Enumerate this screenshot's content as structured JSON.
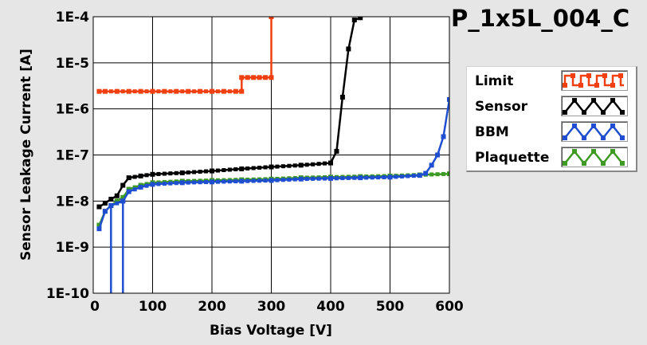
{
  "chart_data": {
    "type": "line",
    "title": "P_1x5L_004_C",
    "xlabel": "Bias Voltage [V]",
    "ylabel": "Sensor Leakage Current [A]",
    "xlim": [
      0,
      600
    ],
    "ylim": [
      1e-10,
      0.0001
    ],
    "yscale": "log",
    "grid": true,
    "legend_position": "right",
    "x_ticks": [
      "0",
      "100",
      "200",
      "300",
      "400",
      "500",
      "600"
    ],
    "y_ticks": [
      "1E-10",
      "1E-9",
      "1E-8",
      "1E-7",
      "1E-6",
      "1E-5",
      "1E-4"
    ],
    "series": [
      {
        "name": "Limit",
        "color": "#f04010",
        "points": [
          [
            10,
            2.4e-06
          ],
          [
            20,
            2.4e-06
          ],
          [
            40,
            2.4e-06
          ],
          [
            60,
            2.4e-06
          ],
          [
            80,
            2.4e-06
          ],
          [
            100,
            2.4e-06
          ],
          [
            120,
            2.4e-06
          ],
          [
            140,
            2.4e-06
          ],
          [
            160,
            2.4e-06
          ],
          [
            180,
            2.4e-06
          ],
          [
            200,
            2.4e-06
          ],
          [
            220,
            2.4e-06
          ],
          [
            240,
            2.4e-06
          ],
          [
            250,
            2.4e-06
          ],
          [
            250,
            4.8e-06
          ],
          [
            260,
            4.8e-06
          ],
          [
            270,
            4.8e-06
          ],
          [
            280,
            4.8e-06
          ],
          [
            290,
            4.8e-06
          ],
          [
            300,
            4.8e-06
          ],
          [
            300,
            0.0001
          ]
        ]
      },
      {
        "name": "Sensor",
        "color": "#000000",
        "points": [
          [
            10,
            7.5e-09
          ],
          [
            20,
            9e-09
          ],
          [
            30,
            1.1e-08
          ],
          [
            40,
            1.3e-08
          ],
          [
            50,
            2.2e-08
          ],
          [
            60,
            3.2e-08
          ],
          [
            80,
            3.5e-08
          ],
          [
            100,
            3.8e-08
          ],
          [
            150,
            4.1e-08
          ],
          [
            200,
            4.5e-08
          ],
          [
            250,
            5e-08
          ],
          [
            300,
            5.5e-08
          ],
          [
            350,
            6e-08
          ],
          [
            400,
            6.7e-08
          ],
          [
            410,
            1.2e-07
          ],
          [
            420,
            1.8e-06
          ],
          [
            430,
            2e-05
          ],
          [
            440,
            8.5e-05
          ],
          [
            450,
            9.5e-05
          ]
        ]
      },
      {
        "name": "BBM",
        "color": "#1f4fd0",
        "points": [
          [
            10,
            2.5e-09
          ],
          [
            20,
            6e-09
          ],
          [
            30,
            8e-09
          ],
          [
            30,
            1e-10
          ],
          [
            30,
            8e-09
          ],
          [
            50,
            1e-08
          ],
          [
            50,
            1e-10
          ],
          [
            50,
            1e-08
          ],
          [
            60,
            1.6e-08
          ],
          [
            80,
            2e-08
          ],
          [
            100,
            2.3e-08
          ],
          [
            150,
            2.5e-08
          ],
          [
            200,
            2.6e-08
          ],
          [
            250,
            2.7e-08
          ],
          [
            300,
            2.8e-08
          ],
          [
            350,
            3e-08
          ],
          [
            400,
            3.1e-08
          ],
          [
            450,
            3.2e-08
          ],
          [
            500,
            3.3e-08
          ],
          [
            550,
            3.6e-08
          ],
          [
            560,
            4e-08
          ],
          [
            570,
            6e-08
          ],
          [
            580,
            1e-07
          ],
          [
            590,
            2.5e-07
          ],
          [
            600,
            1.6e-06
          ]
        ]
      },
      {
        "name": "Plaquette",
        "color": "#3d9a23",
        "points": [
          [
            10,
            3e-09
          ],
          [
            20,
            6e-09
          ],
          [
            30,
            8e-09
          ],
          [
            40,
            1e-08
          ],
          [
            50,
            1.2e-08
          ],
          [
            60,
            1.8e-08
          ],
          [
            80,
            2.2e-08
          ],
          [
            100,
            2.5e-08
          ],
          [
            150,
            2.7e-08
          ],
          [
            200,
            2.8e-08
          ],
          [
            250,
            2.9e-08
          ],
          [
            300,
            3e-08
          ],
          [
            350,
            3.2e-08
          ],
          [
            400,
            3.3e-08
          ],
          [
            450,
            3.4e-08
          ],
          [
            500,
            3.5e-08
          ],
          [
            550,
            3.7e-08
          ],
          [
            600,
            3.9e-08
          ]
        ]
      }
    ]
  }
}
